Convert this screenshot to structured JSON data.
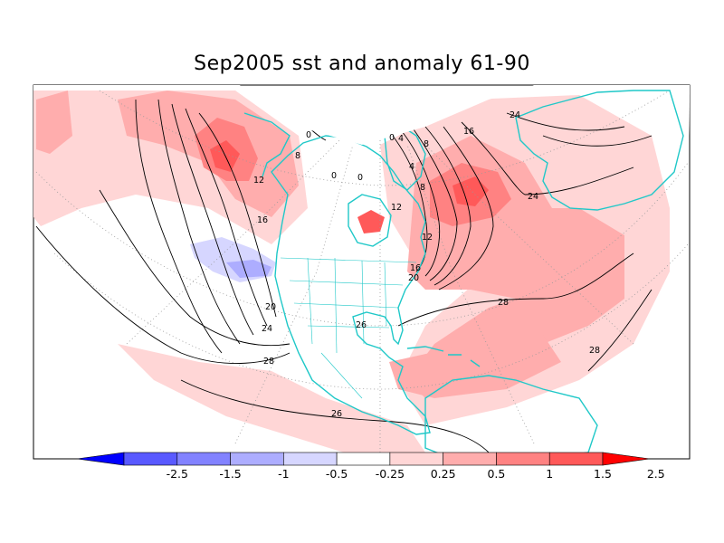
{
  "title": "Sep2005 sst and anomaly 61-90",
  "colors": {
    "coast": "#1fc8c8",
    "contour": "#000000",
    "graticule": "#9a9a9a",
    "pos_025": "#ffd6d6",
    "pos_05": "#ffadad",
    "pos_10": "#ff8282",
    "pos_15": "#ff5959",
    "pos_25": "#ff0000",
    "neg_025": "#d6d6ff",
    "neg_05": "#adadff",
    "neg_10": "#8282ff",
    "neg_15": "#5959ff",
    "neg_25": "#0000ff"
  },
  "colorbar": {
    "labels": [
      "-2.5",
      "-1.5",
      "-1",
      "-0.5",
      "-0.25",
      "0.25",
      "0.5",
      "1",
      "1.5",
      "2.5"
    ],
    "fills": [
      "#0000ff",
      "#5959ff",
      "#8282ff",
      "#adadff",
      "#d6d6ff",
      "#ffffff",
      "#ffd6d6",
      "#ffadad",
      "#ff8282",
      "#ff5959",
      "#ff0000"
    ]
  },
  "contour_labels": [
    "0",
    "0",
    "0",
    "0",
    "4",
    "8",
    "8",
    "12",
    "12",
    "16",
    "16",
    "16",
    "20",
    "20",
    "24",
    "24",
    "24",
    "26",
    "26",
    "28",
    "28",
    "28",
    "8",
    "12",
    "4"
  ]
}
